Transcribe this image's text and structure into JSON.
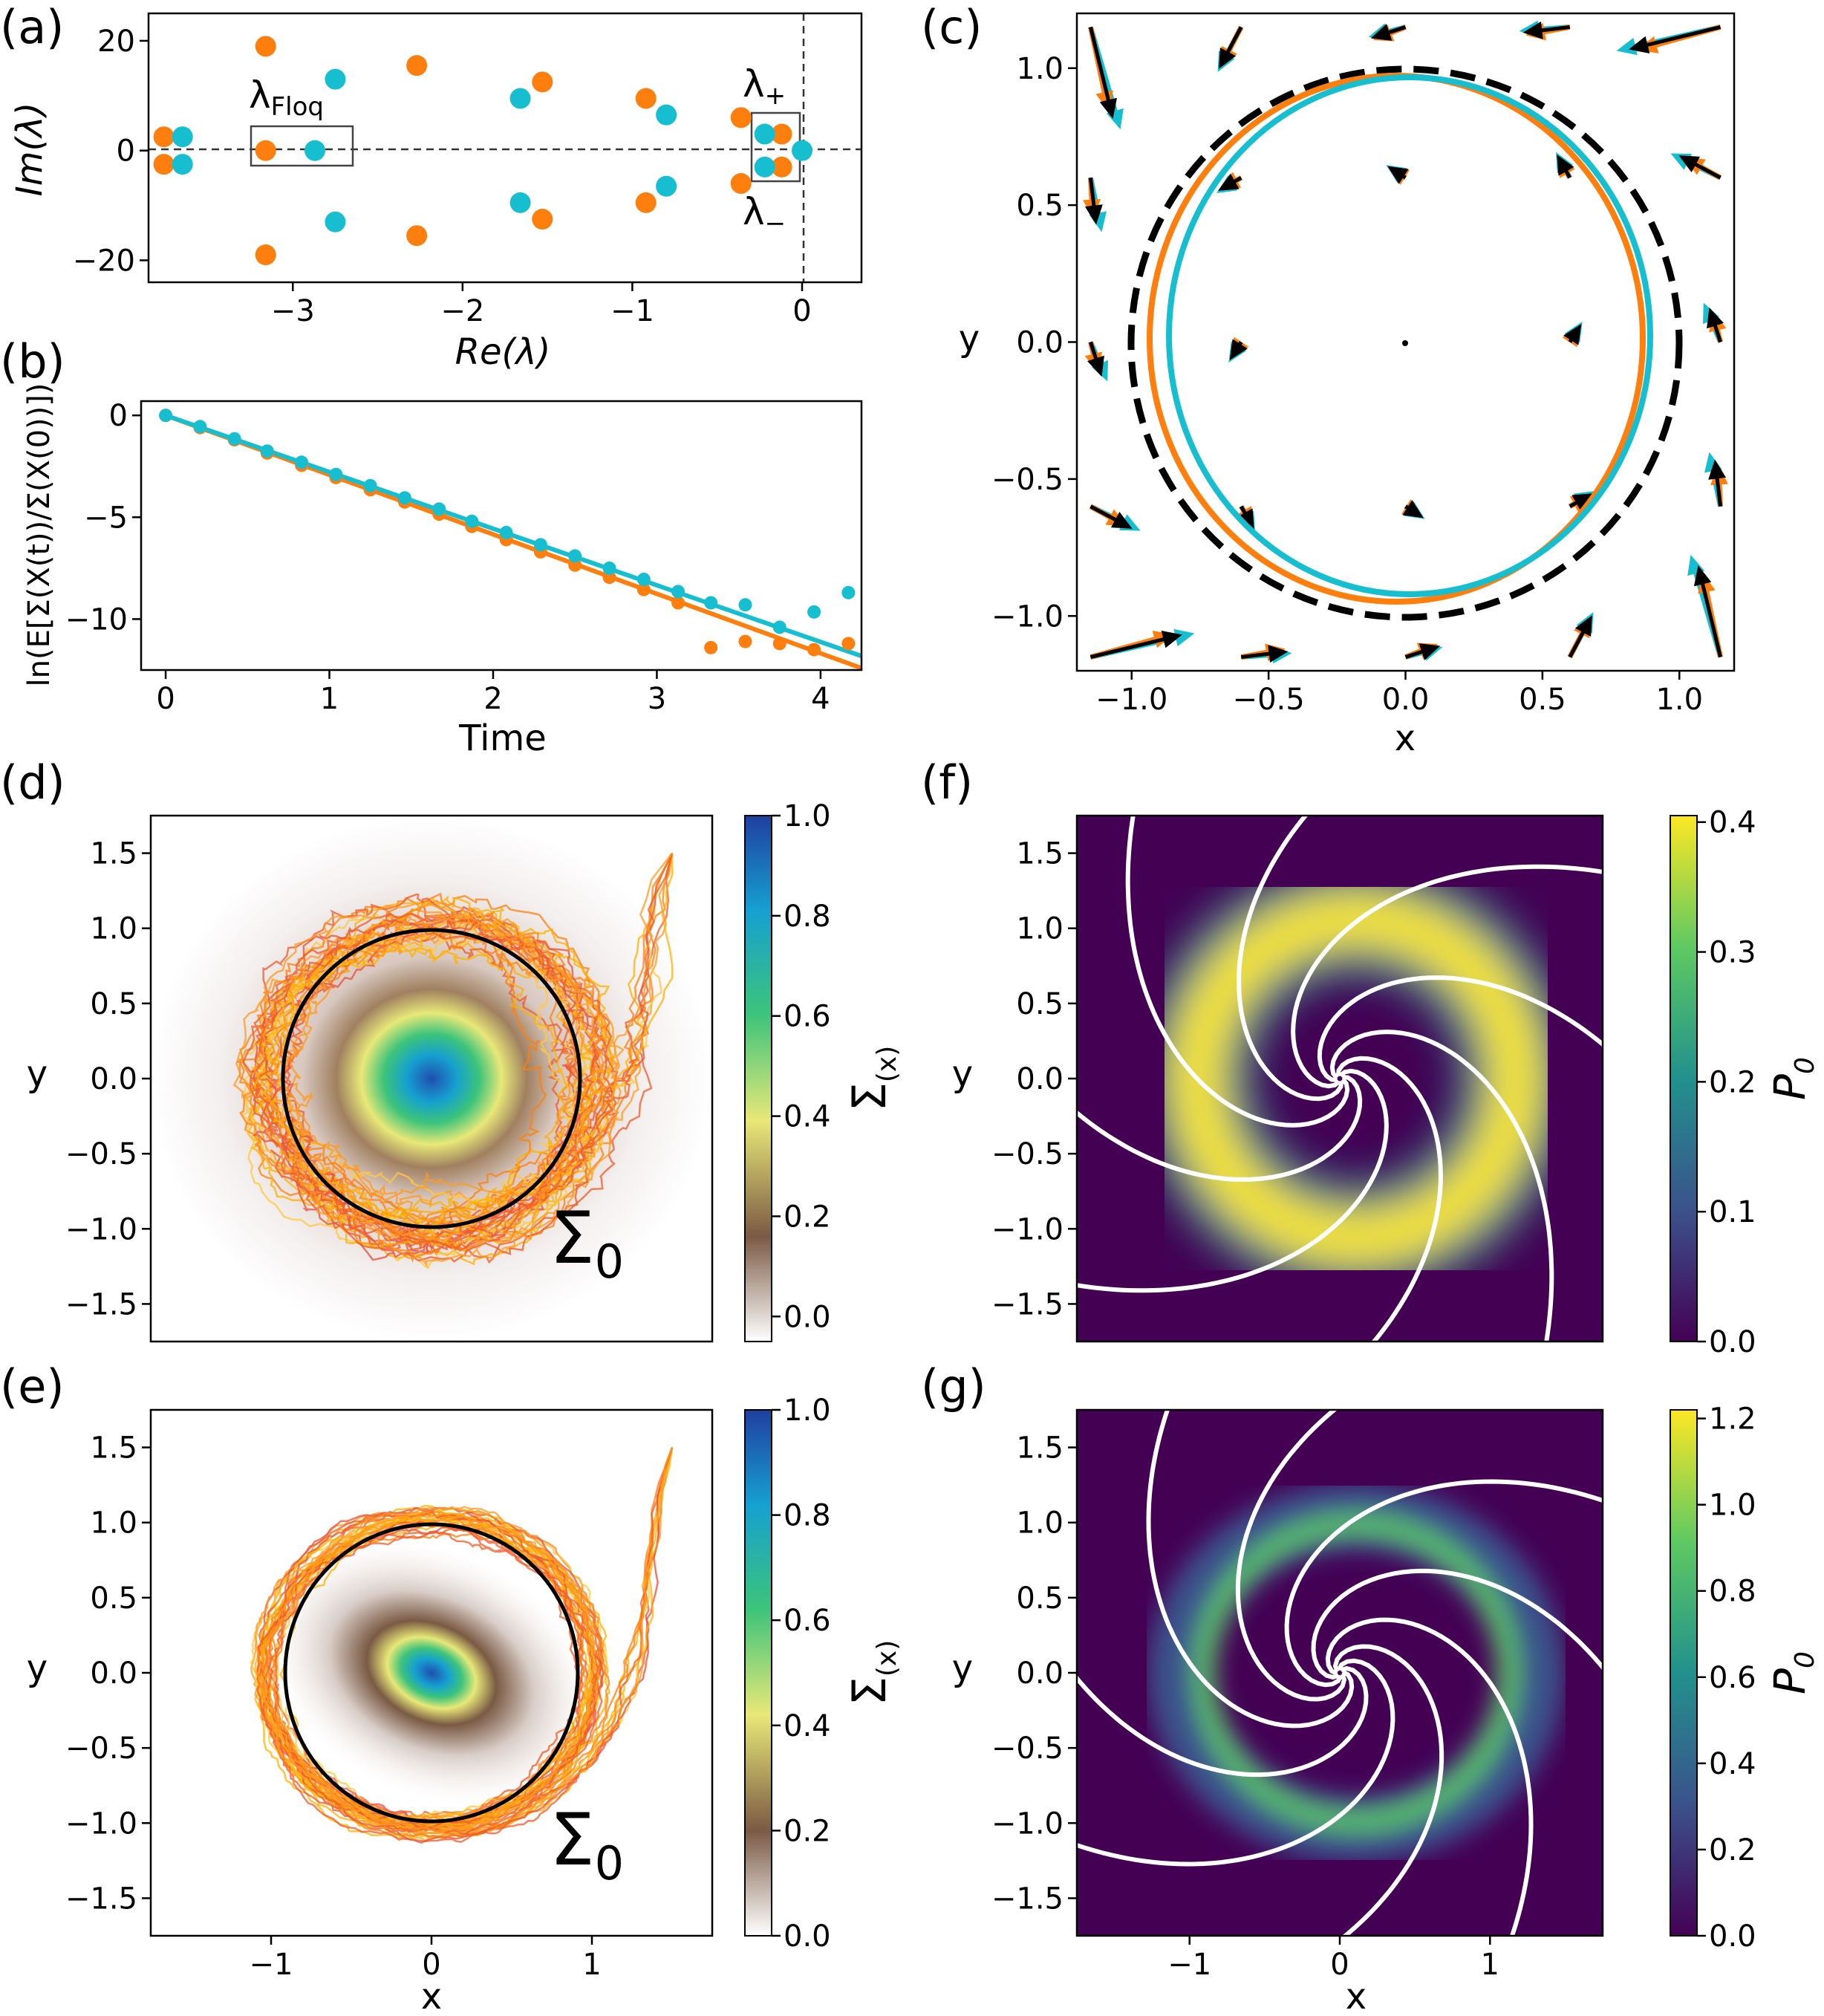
{
  "colors": {
    "orange": "#ff7f0e",
    "cyan": "#17becf",
    "black": "#000000"
  },
  "chart_data": [
    {
      "panel": "(a)",
      "type": "scatter",
      "xlabel": "Re(λ)",
      "ylabel": "Im(λ)",
      "xlim": [
        -3.85,
        0.35
      ],
      "ylim": [
        -24,
        25
      ],
      "xticks": [
        "−3",
        "−2",
        "−1",
        "0"
      ],
      "yticks": [
        "20",
        "0",
        "−20"
      ],
      "annotations": {
        "floq": "λFloq",
        "plus": "λ+",
        "minus": "λ−"
      },
      "series": [
        {
          "name": "orange",
          "color": "#ff7f0e",
          "points": [
            [
              -3.76,
              2.5
            ],
            [
              -3.76,
              -2.5
            ],
            [
              -3.16,
              19
            ],
            [
              -3.16,
              -19
            ],
            [
              -3.16,
              0
            ],
            [
              -2.27,
              15.5
            ],
            [
              -2.27,
              -15.5
            ],
            [
              -1.53,
              12.5
            ],
            [
              -1.53,
              -12.5
            ],
            [
              -0.92,
              9.5
            ],
            [
              -0.92,
              -9.5
            ],
            [
              -0.36,
              6
            ],
            [
              -0.36,
              -6
            ],
            [
              -0.12,
              3
            ],
            [
              -0.12,
              -3
            ]
          ]
        },
        {
          "name": "cyan",
          "color": "#17becf",
          "points": [
            [
              -3.65,
              2.5
            ],
            [
              -3.65,
              -2.5
            ],
            [
              -2.75,
              13
            ],
            [
              -2.75,
              -13
            ],
            [
              -2.87,
              0
            ],
            [
              -1.66,
              9.5
            ],
            [
              -1.66,
              -9.5
            ],
            [
              -0.8,
              6.5
            ],
            [
              -0.8,
              -6.5
            ],
            [
              -0.22,
              3
            ],
            [
              -0.22,
              -3
            ],
            [
              0,
              0
            ]
          ]
        }
      ]
    },
    {
      "panel": "(b)",
      "type": "line",
      "xlabel": "Time",
      "ylabel": "ln(E[Σ(X(t))/Σ(X(0))])",
      "xlim": [
        -0.15,
        4.25
      ],
      "ylim": [
        -12.5,
        0.7
      ],
      "xticks": [
        "0",
        "1",
        "2",
        "3",
        "4"
      ],
      "yticks": [
        "0",
        "−5",
        "−10"
      ],
      "series": [
        {
          "name": "orange fit",
          "color": "#ff7f0e",
          "slope": -2.92
        },
        {
          "name": "cyan fit",
          "color": "#17becf",
          "slope": -2.78
        },
        {
          "name": "orange data",
          "color": "#ff7f0e",
          "points": [
            [
              0,
              0
            ],
            [
              0.21,
              -0.6
            ],
            [
              0.42,
              -1.2
            ],
            [
              0.62,
              -1.85
            ],
            [
              0.83,
              -2.45
            ],
            [
              1.04,
              -3.05
            ],
            [
              1.25,
              -3.65
            ],
            [
              1.46,
              -4.25
            ],
            [
              1.67,
              -4.85
            ],
            [
              1.87,
              -5.45
            ],
            [
              2.08,
              -6.1
            ],
            [
              2.29,
              -6.7
            ],
            [
              2.5,
              -7.35
            ],
            [
              2.71,
              -7.95
            ],
            [
              2.92,
              -8.55
            ],
            [
              3.13,
              -9.2
            ],
            [
              3.33,
              -11.4
            ],
            [
              3.54,
              -11.1
            ],
            [
              3.75,
              -11.2
            ],
            [
              3.96,
              -11.5
            ],
            [
              4.17,
              -11.2
            ]
          ]
        },
        {
          "name": "cyan data",
          "color": "#17becf",
          "points": [
            [
              0,
              0
            ],
            [
              0.21,
              -0.55
            ],
            [
              0.42,
              -1.15
            ],
            [
              0.62,
              -1.75
            ],
            [
              0.83,
              -2.3
            ],
            [
              1.04,
              -2.9
            ],
            [
              1.25,
              -3.45
            ],
            [
              1.46,
              -4.05
            ],
            [
              1.67,
              -4.6
            ],
            [
              1.87,
              -5.2
            ],
            [
              2.08,
              -5.75
            ],
            [
              2.29,
              -6.35
            ],
            [
              2.5,
              -6.9
            ],
            [
              2.71,
              -7.5
            ],
            [
              2.92,
              -8.05
            ],
            [
              3.13,
              -8.65
            ],
            [
              3.33,
              -9.2
            ],
            [
              3.54,
              -9.3
            ],
            [
              3.75,
              -10.4
            ],
            [
              3.96,
              -9.65
            ],
            [
              4.17,
              -8.7
            ]
          ]
        }
      ]
    },
    {
      "panel": "(c)",
      "type": "line",
      "xlabel": "x",
      "ylabel": "y",
      "xlim": [
        -1.2,
        1.2
      ],
      "ylim": [
        -1.2,
        1.2
      ],
      "xticks": [
        "−1.0",
        "−0.5",
        "0.0",
        "0.5",
        "1.0"
      ],
      "yticks": [
        "1.0",
        "0.5",
        "0.0",
        "−0.5",
        "−1.0"
      ],
      "series": [
        {
          "name": "dashed unit circle",
          "color": "#000000",
          "radius": 1.0
        },
        {
          "name": "orange cycle",
          "color": "#ff7f0e",
          "radius": 0.92
        },
        {
          "name": "cyan cycle",
          "color": "#17becf",
          "radius": 0.88
        }
      ]
    },
    {
      "panel": "(d)",
      "type": "heatmap",
      "xlabel": "",
      "ylabel": "y",
      "xlim": [
        -1.75,
        1.75
      ],
      "ylim": [
        -1.75,
        1.75
      ],
      "yticks": [
        "1.5",
        "1.0",
        "0.5",
        "0.0",
        "−0.5",
        "−1.0",
        "−1.5"
      ],
      "colorbar_label": "Σ(x)",
      "colorbar_ticks": [
        "1.0",
        "0.8",
        "0.6",
        "0.4",
        "0.2",
        "0.0"
      ],
      "curve_label": "Σ0"
    },
    {
      "panel": "(e)",
      "type": "heatmap",
      "xlabel": "x",
      "ylabel": "y",
      "xlim": [
        -1.75,
        1.75
      ],
      "ylim": [
        -1.75,
        1.75
      ],
      "xticks": [
        "−1",
        "0",
        "1"
      ],
      "yticks": [
        "1.5",
        "1.0",
        "0.5",
        "0.0",
        "−0.5",
        "−1.0",
        "−1.5"
      ],
      "colorbar_label": "Σ(x)",
      "colorbar_ticks": [
        "1.0",
        "0.8",
        "0.6",
        "0.4",
        "0.2",
        "0.0"
      ],
      "curve_label": "Σ0"
    },
    {
      "panel": "(f)",
      "type": "heatmap",
      "xlabel": "",
      "ylabel": "y",
      "xlim": [
        -1.75,
        1.75
      ],
      "ylim": [
        -1.75,
        1.75
      ],
      "yticks": [
        "1.5",
        "1.0",
        "0.5",
        "0.0",
        "−0.5",
        "−1.0",
        "−1.5"
      ],
      "colorbar_label": "P0",
      "colorbar_ticks": [
        "0.4",
        "0.3",
        "0.2",
        "0.1",
        "0.0"
      ]
    },
    {
      "panel": "(g)",
      "type": "heatmap",
      "xlabel": "x",
      "ylabel": "y",
      "xlim": [
        -1.75,
        1.75
      ],
      "ylim": [
        -1.75,
        1.75
      ],
      "xticks": [
        "−1",
        "0",
        "1"
      ],
      "yticks": [
        "1.5",
        "1.0",
        "0.5",
        "0.0",
        "−0.5",
        "−1.0",
        "−1.5"
      ],
      "colorbar_label": "P0",
      "colorbar_ticks": [
        "1.2",
        "1.0",
        "0.8",
        "0.6",
        "0.4",
        "0.2",
        "0.0"
      ]
    }
  ]
}
